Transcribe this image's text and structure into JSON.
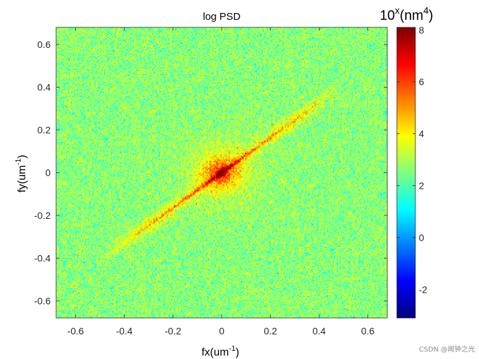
{
  "chart_data": {
    "type": "heatmap",
    "title": "log PSD",
    "xlabel": {
      "base": "fx(um",
      "sup": "-1",
      "tail": ")"
    },
    "ylabel": {
      "base": "fy(um",
      "sup": "-1",
      "tail": ")"
    },
    "xlim": [
      -0.68,
      0.68
    ],
    "ylim": [
      -0.68,
      0.68
    ],
    "xticks": [
      -0.6,
      -0.4,
      -0.2,
      0,
      0.2,
      0.4,
      0.6
    ],
    "xtick_labels": [
      "-0.6",
      "-0.4",
      "-0.2",
      "0",
      "0.2",
      "0.4",
      "0.6"
    ],
    "yticks": [
      0.6,
      0.4,
      0.2,
      0,
      -0.2,
      -0.4,
      -0.6
    ],
    "ytick_labels": [
      "0.6",
      "0.4",
      "0.2",
      "0",
      "-0.2",
      "-0.4",
      "-0.6"
    ],
    "colorbar": {
      "colormap": "jet",
      "clim": [
        -3.1,
        8.1
      ],
      "ticks": [
        8,
        6,
        4,
        2,
        0,
        -2
      ],
      "tick_labels": [
        "8",
        "6",
        "4",
        "2",
        "0",
        "-2"
      ],
      "title": {
        "base": "10",
        "sup1": "x",
        "mid": "(nm",
        "sup2": "4",
        "tail": ")"
      }
    },
    "data_description": {
      "background_level": 2.6,
      "background_noise_std": 0.55,
      "center_peak": {
        "fx": 0,
        "fy": 0,
        "value": 8
      },
      "streak_slope": 0.82,
      "streak_extent_fx": [
        -0.5,
        0.5
      ],
      "streak_peak_value": 5.6
    }
  },
  "watermark": "CSDN @闻钟之光"
}
